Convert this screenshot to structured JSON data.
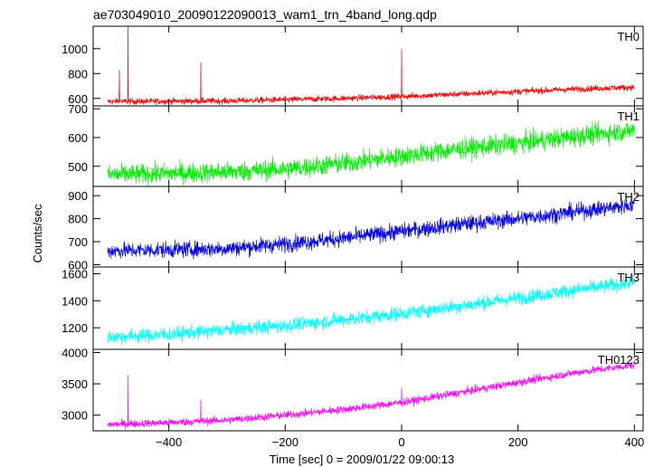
{
  "chart_data": {
    "type": "line",
    "title": "ae703049010_20090122090013_wam1_trn_4band_long.qdp",
    "xlabel": "Time [sec] 0 = 2009/01/22 09:00:13",
    "ylabel": "Counts/sec",
    "xlim": [
      -530,
      415
    ],
    "xticks": [
      -400,
      -200,
      0,
      200,
      400
    ],
    "grid": false,
    "x_start": -505,
    "x_end": 400,
    "panels": [
      {
        "name": "TH0",
        "color": "#ff0000",
        "ylim": [
          540,
          1180
        ],
        "yticks": [
          600,
          800,
          1000
        ],
        "baseline": [
          [
            -505,
            575
          ],
          [
            -300,
            580
          ],
          [
            -100,
            600
          ],
          [
            0,
            615
          ],
          [
            100,
            635
          ],
          [
            200,
            655
          ],
          [
            300,
            675
          ],
          [
            400,
            690
          ]
        ],
        "noise": 18,
        "spikes": [
          [
            -485,
            830
          ],
          [
            -470,
            1180
          ],
          [
            -345,
            890
          ],
          [
            0,
            1000
          ]
        ]
      },
      {
        "name": "TH1",
        "color": "#00ee00",
        "ylim": [
          430,
          710
        ],
        "yticks": [
          500,
          600,
          700
        ],
        "baseline": [
          [
            -505,
            470
          ],
          [
            -300,
            480
          ],
          [
            -200,
            490
          ],
          [
            -100,
            510
          ],
          [
            0,
            535
          ],
          [
            100,
            560
          ],
          [
            200,
            580
          ],
          [
            300,
            605
          ],
          [
            400,
            625
          ]
        ],
        "noise": 25,
        "spikes": []
      },
      {
        "name": "TH2",
        "color": "#0000ee",
        "ylim": [
          590,
          940
        ],
        "yticks": [
          600,
          700,
          800,
          900
        ],
        "baseline": [
          [
            -505,
            660
          ],
          [
            -400,
            665
          ],
          [
            -300,
            670
          ],
          [
            -200,
            690
          ],
          [
            -100,
            715
          ],
          [
            0,
            745
          ],
          [
            100,
            775
          ],
          [
            200,
            800
          ],
          [
            300,
            830
          ],
          [
            400,
            860
          ]
        ],
        "noise": 25,
        "spikes": []
      },
      {
        "name": "TH3",
        "color": "#00ffff",
        "ylim": [
          1040,
          1650
        ],
        "yticks": [
          1200,
          1400,
          1600
        ],
        "baseline": [
          [
            -505,
            1130
          ],
          [
            -400,
            1150
          ],
          [
            -300,
            1185
          ],
          [
            -200,
            1215
          ],
          [
            -100,
            1260
          ],
          [
            0,
            1305
          ],
          [
            100,
            1360
          ],
          [
            200,
            1420
          ],
          [
            300,
            1480
          ],
          [
            400,
            1535
          ]
        ],
        "noise": 38,
        "spikes": []
      },
      {
        "name": "TH0123",
        "color": "#ff00ff",
        "ylim": [
          2750,
          4050
        ],
        "yticks": [
          3000,
          3500,
          4000
        ],
        "baseline": [
          [
            -505,
            2850
          ],
          [
            -400,
            2880
          ],
          [
            -300,
            2920
          ],
          [
            -200,
            3000
          ],
          [
            -100,
            3090
          ],
          [
            0,
            3200
          ],
          [
            100,
            3360
          ],
          [
            200,
            3520
          ],
          [
            300,
            3680
          ],
          [
            400,
            3800
          ]
        ],
        "noise": 45,
        "spikes": [
          [
            -470,
            3640
          ],
          [
            -345,
            3250
          ],
          [
            0,
            3440
          ]
        ]
      }
    ]
  }
}
